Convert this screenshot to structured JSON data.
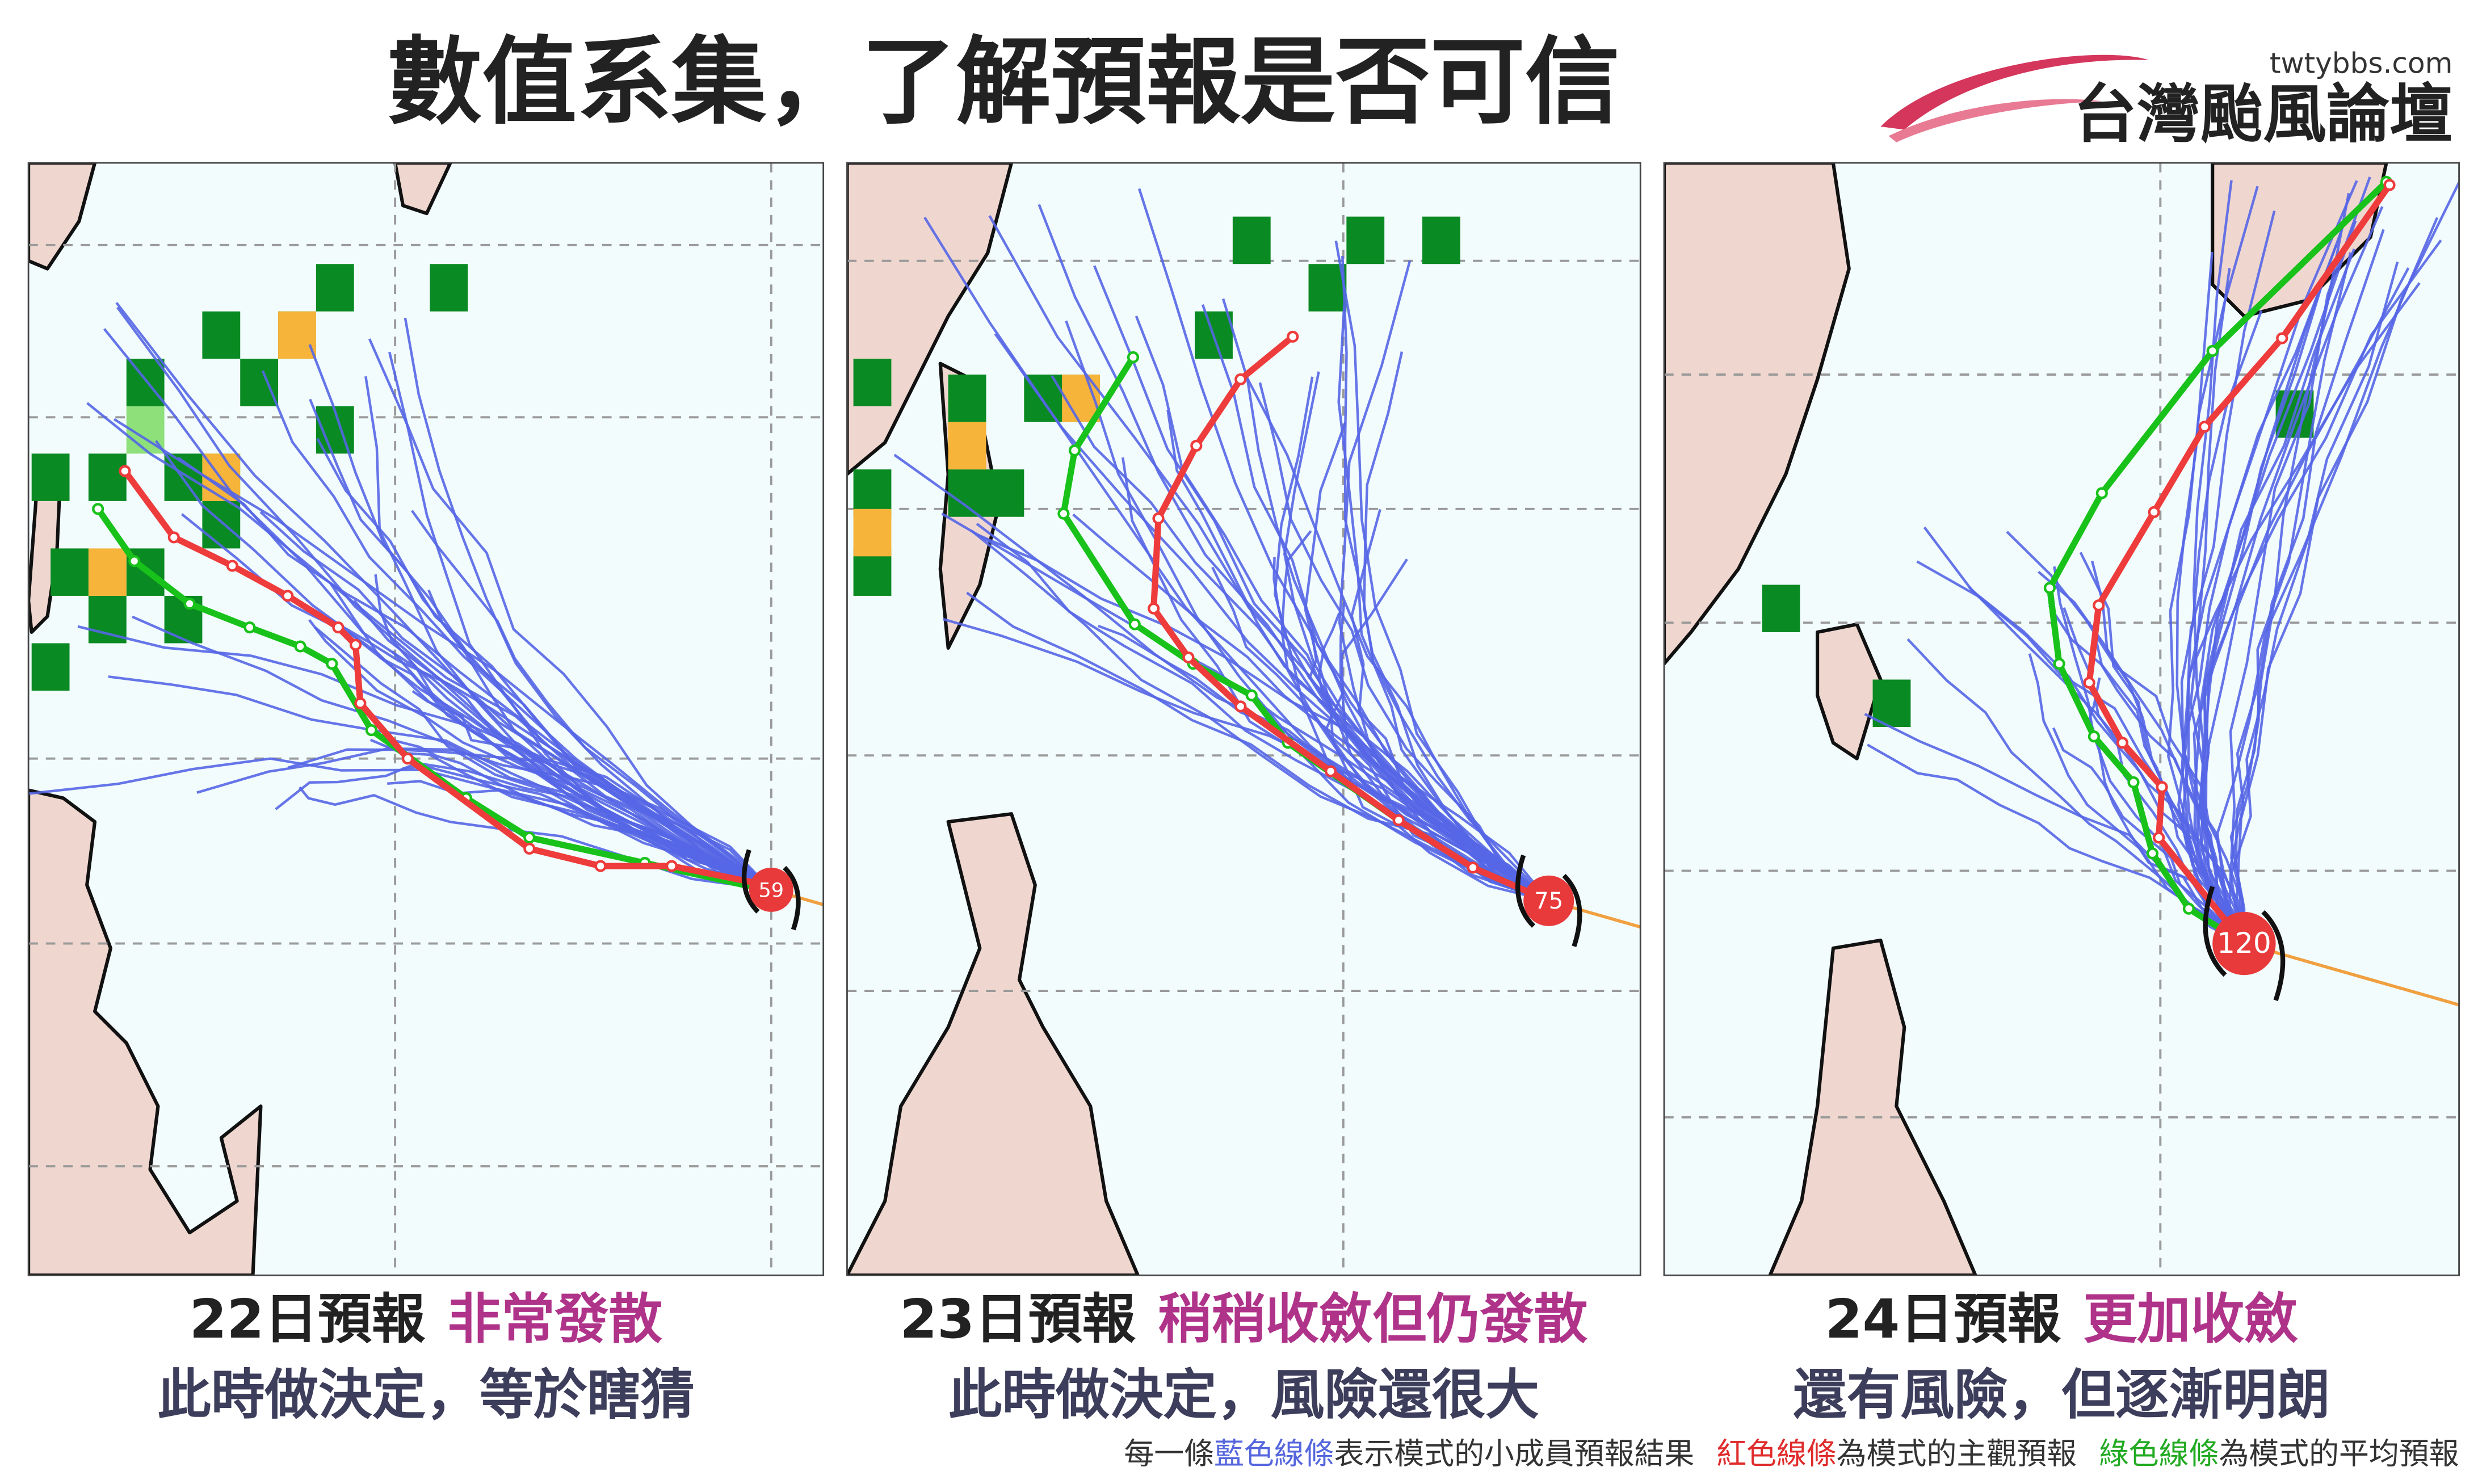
{
  "header": {
    "title": "數值系集，了解預報是否可信",
    "site": "twtybbs.com",
    "logo": "台灣颱風論壇"
  },
  "panels": [
    {
      "date": "22日預報",
      "verdict": "非常發散",
      "note": "此時做決定，等於瞎猜",
      "storm_label": "59"
    },
    {
      "date": "23日預報",
      "verdict": "稍稍收斂但仍發散",
      "note": "此時做決定，風險還很大",
      "storm_label": "75"
    },
    {
      "date": "24日預報",
      "verdict": "更加收斂",
      "note": "還有風險，但逐漸明朗",
      "storm_label": "120"
    }
  ],
  "footer": {
    "parts": [
      "每一條",
      "藍色線條",
      "表示模式的小成員預報結果",
      "紅色線條",
      "為模式的主觀預報",
      "綠色線條",
      "為模式的平均預報"
    ]
  }
}
